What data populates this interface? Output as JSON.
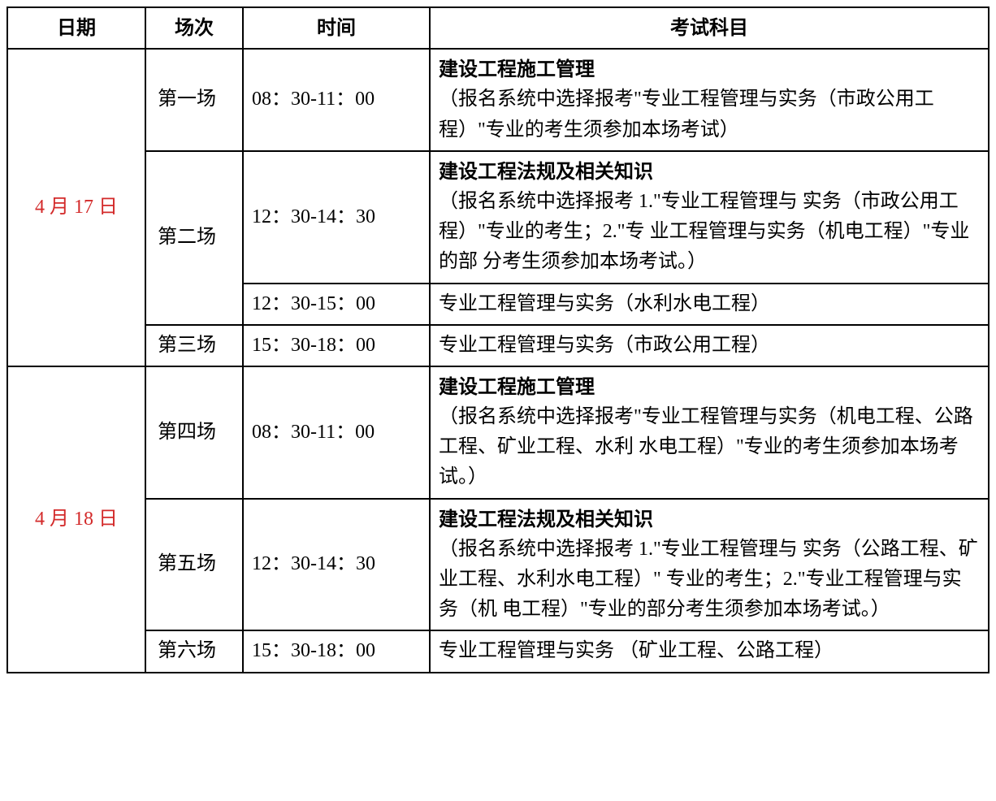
{
  "table": {
    "headers": {
      "date": "日期",
      "session": "场次",
      "time": "时间",
      "subject": "考试科目"
    },
    "columns": {
      "date_width": 170,
      "session_width": 120,
      "time_width": 230
    },
    "colors": {
      "border": "#000000",
      "background": "#ffffff",
      "text": "#000000",
      "date_text": "#d32a2a"
    },
    "typography": {
      "body_fontsize": 24,
      "line_height": 1.55,
      "header_font": "SimHei",
      "body_font": "SimSun"
    },
    "days": [
      {
        "date": "4 月 17 日",
        "rowspan": 4,
        "rows": [
          {
            "session": "第一场",
            "session_rowspan": 1,
            "time": "08：30-11：00",
            "subject_title": "建设工程施工管理",
            "subject_desc": "（报名系统中选择报考\"专业工程管理与实务（市政公用工程）\"专业的考生须参加本场考试）"
          },
          {
            "session": "第二场",
            "session_rowspan": 2,
            "time": "12：30-14：30",
            "subject_title": "建设工程法规及相关知识",
            "subject_desc": "（报名系统中选择报考 1.\"专业工程管理与 实务（市政公用工程）\"专业的考生；2.\"专 业工程管理与实务（机电工程）\"专业的部 分考生须参加本场考试。）"
          },
          {
            "session": "",
            "session_rowspan": 0,
            "time": "12：30-15：00",
            "subject_title": "",
            "subject_desc": "专业工程管理与实务（水利水电工程）"
          },
          {
            "session": "第三场",
            "session_rowspan": 1,
            "time": "15：30-18：00",
            "subject_title": "",
            "subject_desc": "专业工程管理与实务（市政公用工程）"
          }
        ]
      },
      {
        "date": "4 月 18 日",
        "rowspan": 3,
        "rows": [
          {
            "session": "第四场",
            "session_rowspan": 1,
            "time": "08：30-11：00",
            "subject_title": "建设工程施工管理",
            "subject_desc": "（报名系统中选择报考\"专业工程管理与实务（机电工程、公路工程、矿业工程、水利 水电工程）\"专业的考生须参加本场考试。）"
          },
          {
            "session": "第五场",
            "session_rowspan": 1,
            "time": "12：30-14：30",
            "subject_title": "建设工程法规及相关知识",
            "subject_desc": "（报名系统中选择报考 1.\"专业工程管理与 实务（公路工程、矿业工程、水利水电工程）\" 专业的考生；2.\"专业工程管理与实务（机 电工程）\"专业的部分考生须参加本场考试。）"
          },
          {
            "session": "第六场",
            "session_rowspan": 1,
            "time": "15：30-18：00",
            "subject_title": "",
            "subject_desc": "专业工程管理与实务 （矿业工程、公路工程）"
          }
        ]
      }
    ]
  }
}
